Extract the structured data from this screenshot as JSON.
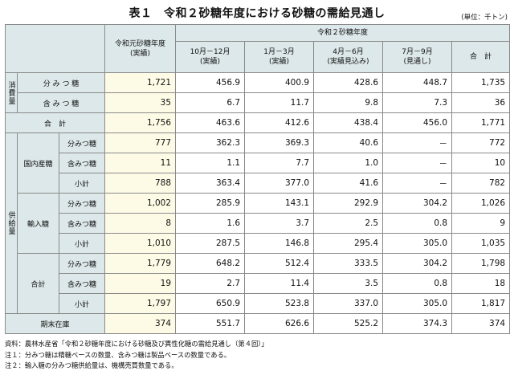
{
  "title": "表１　令和２砂糖年度における砂糖の需給見通し",
  "unit": "(単位：千トン)",
  "headers": {
    "prev_year": [
      "令和元砂糖年度",
      "(実績)"
    ],
    "group": "令和２砂糖年度",
    "p1": [
      "10月－12月",
      "(実績)"
    ],
    "p2": [
      "1月－3月",
      "(実績)"
    ],
    "p3": [
      "4月－6月",
      "(実績見込み)"
    ],
    "p4": [
      "7月－9月",
      "(見通し)"
    ],
    "total": "合　計"
  },
  "labels": {
    "consumption": "消費量",
    "supply": "供給量",
    "domestic": "国内産糖",
    "imported": "輸入糖",
    "combined": "合計",
    "bunmitsu_wide": "分 み つ 糖",
    "ganmitsu_wide": "含 み つ 糖",
    "total": "合　計",
    "bunmitsu": "分みつ糖",
    "ganmitsu": "含みつ糖",
    "subtotal": "小計",
    "ending_stock": "期末在庫"
  },
  "rows": {
    "cons_bun": [
      "1,721",
      "456.9",
      "400.9",
      "428.6",
      "448.7",
      "1,735"
    ],
    "cons_gan": [
      "35",
      "6.7",
      "11.7",
      "9.8",
      "7.3",
      "36"
    ],
    "cons_tot": [
      "1,756",
      "463.6",
      "412.6",
      "438.4",
      "456.0",
      "1,771"
    ],
    "dom_bun": [
      "777",
      "362.3",
      "369.3",
      "40.6",
      "－",
      "772"
    ],
    "dom_gan": [
      "11",
      "1.1",
      "7.7",
      "1.0",
      "－",
      "10"
    ],
    "dom_sub": [
      "788",
      "363.4",
      "377.0",
      "41.6",
      "－",
      "782"
    ],
    "imp_bun": [
      "1,002",
      "285.9",
      "143.1",
      "292.9",
      "304.2",
      "1,026"
    ],
    "imp_gan": [
      "8",
      "1.6",
      "3.7",
      "2.5",
      "0.8",
      "9"
    ],
    "imp_sub": [
      "1,010",
      "287.5",
      "146.8",
      "295.4",
      "305.0",
      "1,035"
    ],
    "all_bun": [
      "1,779",
      "648.2",
      "512.4",
      "333.5",
      "304.2",
      "1,798"
    ],
    "all_gan": [
      "19",
      "2.7",
      "11.4",
      "3.5",
      "0.8",
      "18"
    ],
    "all_sub": [
      "1,797",
      "650.9",
      "523.8",
      "337.0",
      "305.0",
      "1,817"
    ],
    "stock": [
      "374",
      "551.7",
      "626.6",
      "525.2",
      "374.3",
      "374"
    ]
  },
  "notes": [
    "資料：農林水産省「令和２砂糖年度における砂糖及び異性化糖の需給見通し（第４回）」",
    "注１：分みつ糖は精糖ベースの数量、含みつ糖は製品ベースの数量である。",
    "注２：輸入糖の分みつ糖供給量は、機構売買数量である。"
  ]
}
